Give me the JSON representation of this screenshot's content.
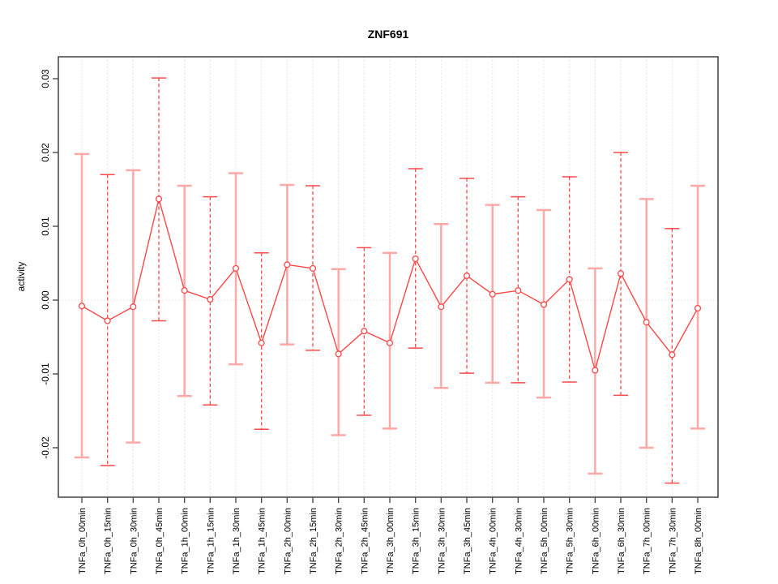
{
  "page": {
    "background": "#ffffff"
  },
  "chart_data": {
    "type": "line",
    "title": "ZNF691",
    "ylabel": "activity",
    "xlabel": "",
    "ylim": [
      -0.0267,
      0.033
    ],
    "yticks": [
      0.03,
      0.02,
      0.01,
      0.0,
      -0.01,
      -0.02
    ],
    "ytick_labels": [
      "0.03",
      "0.02",
      "0.01",
      "0.00",
      "-0.01",
      "-0.02"
    ],
    "grid": {
      "vertical": "dotted line at every category",
      "horizontal": "dotted line at y=0 only"
    },
    "legend_position": "none",
    "marker": "open-circle",
    "categories": [
      "TNFa_0h_00min",
      "TNFa_0h_15min",
      "TNFa_0h_30min",
      "TNFa_0h_45min",
      "TNFa_1h_00min",
      "TNFa_1h_15min",
      "TNFa_1h_30min",
      "TNFa_1h_45min",
      "TNFa_2h_00min",
      "TNFa_2h_15min",
      "TNFa_2h_30min",
      "TNFa_2h_45min",
      "TNFa_3h_00min",
      "TNFa_3h_15min",
      "TNFa_3h_30min",
      "TNFa_3h_45min",
      "TNFa_4h_00min",
      "TNFa_4h_30min",
      "TNFa_5h_00min",
      "TNFa_5h_30min",
      "TNFa_6h_00min",
      "TNFa_6h_30min",
      "TNFa_7h_00min",
      "TNFa_7h_30min",
      "TNFa_8h_00min"
    ],
    "series": [
      {
        "name": "activity",
        "values": [
          -0.0008,
          -0.0028,
          -0.0009,
          0.0137,
          0.0013,
          0.0001,
          0.0043,
          -0.0058,
          0.0048,
          0.0043,
          -0.0073,
          -0.0042,
          -0.0058,
          0.0056,
          -0.0009,
          0.0033,
          0.0008,
          0.0013,
          -0.0006,
          0.0028,
          -0.0095,
          0.0036,
          -0.003,
          -0.0074,
          -0.0011
        ],
        "error_low": [
          -0.0213,
          -0.0224,
          -0.0193,
          -0.0028,
          -0.013,
          -0.0142,
          -0.0087,
          -0.0175,
          -0.006,
          -0.0068,
          -0.0183,
          -0.0156,
          -0.0174,
          -0.0065,
          -0.0119,
          -0.0099,
          -0.0112,
          -0.0112,
          -0.0132,
          -0.0111,
          -0.0235,
          -0.0129,
          -0.02,
          -0.0248,
          -0.0174
        ],
        "error_high": [
          0.0198,
          0.017,
          0.0176,
          0.0301,
          0.0155,
          0.014,
          0.0172,
          0.0064,
          0.0156,
          0.0155,
          0.0042,
          0.0071,
          0.0064,
          0.0178,
          0.0103,
          0.0165,
          0.0129,
          0.014,
          0.0122,
          0.0167,
          0.0043,
          0.02,
          0.0137,
          0.0097,
          0.0155
        ]
      }
    ],
    "colors": {
      "line": "#ff4747",
      "marker_stroke": "#ff4747",
      "marker_fill": "#ffffff",
      "error_bar_solid": "#ffa8a8",
      "error_bar_dashed": "#ff4a4a",
      "grid": "#dcdcdc",
      "axis": "#4d4d4d",
      "text": "#000000",
      "background": "#ffffff"
    }
  }
}
